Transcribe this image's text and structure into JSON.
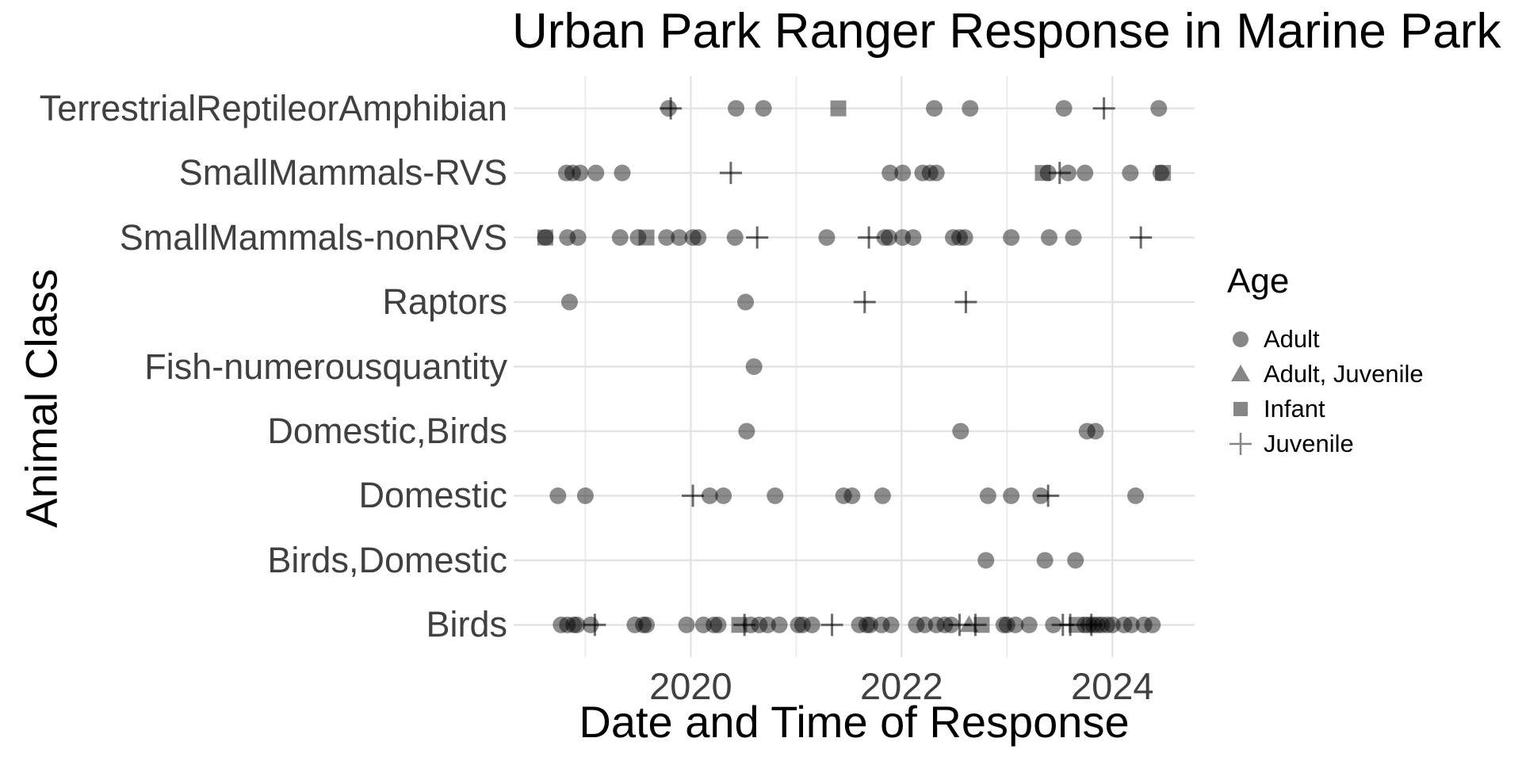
{
  "title": "Urban Park Ranger Response in Marine Park",
  "legend": {
    "title": "Age",
    "entries": [
      {
        "label": "Adult",
        "shape": "circle"
      },
      {
        "label": "Adult, Juvenile",
        "shape": "triangle"
      },
      {
        "label": "Infant",
        "shape": "square"
      },
      {
        "label": "Juvenile",
        "shape": "plus"
      }
    ]
  },
  "chart_data": {
    "type": "scatter",
    "title": "Urban Park Ranger Response in Marine Park",
    "xlabel": "Date and Time of Response",
    "ylabel": "Animal Class",
    "legend_title": "Age",
    "legend_position": "right",
    "grid": true,
    "x_range": [
      2018.32,
      2024.78
    ],
    "x_tick_labels": [
      "2020",
      "2022",
      "2024"
    ],
    "x_ticks": [
      2020,
      2022,
      2024
    ],
    "x_major_gridlines": [
      2020,
      2022,
      2024
    ],
    "x_minor_gridlines": [
      2019,
      2021,
      2023
    ],
    "categories": [
      "TerrestrialReptileorAmphibian",
      "SmallMammals-RVS",
      "SmallMammals-nonRVS",
      "Raptors",
      "Fish-numerousquantity",
      "Domestic,Birds",
      "Domestic",
      "Birds,Domestic",
      "Birds"
    ],
    "series": [
      {
        "name": "Adult",
        "shape": "circle",
        "points": [
          [
            "TerrestrialReptileorAmphibian",
            2019.79
          ],
          [
            "TerrestrialReptileorAmphibian",
            2020.43
          ],
          [
            "TerrestrialReptileorAmphibian",
            2020.69
          ],
          [
            "TerrestrialReptileorAmphibian",
            2022.31
          ],
          [
            "TerrestrialReptileorAmphibian",
            2022.65
          ],
          [
            "TerrestrialReptileorAmphibian",
            2023.54
          ],
          [
            "TerrestrialReptileorAmphibian",
            2024.44
          ],
          [
            "SmallMammals-RVS",
            2018.82
          ],
          [
            "SmallMammals-RVS",
            2018.88
          ],
          [
            "SmallMammals-RVS",
            2018.95
          ],
          [
            "SmallMammals-RVS",
            2019.1
          ],
          [
            "SmallMammals-RVS",
            2019.35
          ],
          [
            "SmallMammals-RVS",
            2021.89
          ],
          [
            "SmallMammals-RVS",
            2022.01
          ],
          [
            "SmallMammals-RVS",
            2022.2
          ],
          [
            "SmallMammals-RVS",
            2022.27
          ],
          [
            "SmallMammals-RVS",
            2022.33
          ],
          [
            "SmallMammals-RVS",
            2023.39
          ],
          [
            "SmallMammals-RVS",
            2023.58
          ],
          [
            "SmallMammals-RVS",
            2023.74
          ],
          [
            "SmallMammals-RVS",
            2024.17
          ],
          [
            "SmallMammals-RVS",
            2024.46
          ],
          [
            "SmallMammals-nonRVS",
            2018.62
          ],
          [
            "SmallMammals-nonRVS",
            2018.83
          ],
          [
            "SmallMammals-nonRVS",
            2018.93
          ],
          [
            "SmallMammals-nonRVS",
            2019.33
          ],
          [
            "SmallMammals-nonRVS",
            2019.5
          ],
          [
            "SmallMammals-nonRVS",
            2019.77
          ],
          [
            "SmallMammals-nonRVS",
            2019.89
          ],
          [
            "SmallMammals-nonRVS",
            2020.02
          ],
          [
            "SmallMammals-nonRVS",
            2020.07
          ],
          [
            "SmallMammals-nonRVS",
            2020.42
          ],
          [
            "SmallMammals-nonRVS",
            2021.29
          ],
          [
            "SmallMammals-nonRVS",
            2021.84
          ],
          [
            "SmallMammals-nonRVS",
            2021.88
          ],
          [
            "SmallMammals-nonRVS",
            2022.01
          ],
          [
            "SmallMammals-nonRVS",
            2022.11
          ],
          [
            "SmallMammals-nonRVS",
            2022.49
          ],
          [
            "SmallMammals-nonRVS",
            2022.55
          ],
          [
            "SmallMammals-nonRVS",
            2022.6
          ],
          [
            "SmallMammals-nonRVS",
            2023.04
          ],
          [
            "SmallMammals-nonRVS",
            2023.4
          ],
          [
            "SmallMammals-nonRVS",
            2023.63
          ],
          [
            "Raptors",
            2018.85
          ],
          [
            "Raptors",
            2020.52
          ],
          [
            "Fish-numerousquantity",
            2020.6
          ],
          [
            "Domestic,Birds",
            2020.53
          ],
          [
            "Domestic,Birds",
            2022.56
          ],
          [
            "Domestic,Birds",
            2023.76
          ],
          [
            "Domestic,Birds",
            2023.84
          ],
          [
            "Domestic",
            2018.74
          ],
          [
            "Domestic",
            2019.0
          ],
          [
            "Domestic",
            2020.18
          ],
          [
            "Domestic",
            2020.31
          ],
          [
            "Domestic",
            2020.8
          ],
          [
            "Domestic",
            2021.45
          ],
          [
            "Domestic",
            2021.53
          ],
          [
            "Domestic",
            2021.82
          ],
          [
            "Domestic",
            2022.82
          ],
          [
            "Domestic",
            2023.04
          ],
          [
            "Domestic",
            2023.32
          ],
          [
            "Domestic",
            2024.22
          ],
          [
            "Birds,Domestic",
            2022.8
          ],
          [
            "Birds,Domestic",
            2023.36
          ],
          [
            "Birds,Domestic",
            2023.65
          ],
          [
            "Birds",
            2018.77
          ],
          [
            "Birds",
            2018.83
          ],
          [
            "Birds",
            2018.89
          ],
          [
            "Birds",
            2018.92
          ],
          [
            "Birds",
            2019.05
          ],
          [
            "Birds",
            2019.47
          ],
          [
            "Birds",
            2019.55
          ],
          [
            "Birds",
            2019.58
          ],
          [
            "Birds",
            2019.96
          ],
          [
            "Birds",
            2020.12
          ],
          [
            "Birds",
            2020.22
          ],
          [
            "Birds",
            2020.26
          ],
          [
            "Birds",
            2020.57
          ],
          [
            "Birds",
            2020.65
          ],
          [
            "Birds",
            2020.73
          ],
          [
            "Birds",
            2020.84
          ],
          [
            "Birds",
            2021.02
          ],
          [
            "Birds",
            2021.06
          ],
          [
            "Birds",
            2021.15
          ],
          [
            "Birds",
            2021.6
          ],
          [
            "Birds",
            2021.67
          ],
          [
            "Birds",
            2021.7
          ],
          [
            "Birds",
            2021.81
          ],
          [
            "Birds",
            2021.9
          ],
          [
            "Birds",
            2022.14
          ],
          [
            "Birds",
            2022.22
          ],
          [
            "Birds",
            2022.33
          ],
          [
            "Birds",
            2022.41
          ],
          [
            "Birds",
            2022.47
          ],
          [
            "Birds",
            2022.97
          ],
          [
            "Birds",
            2023.0
          ],
          [
            "Birds",
            2023.08
          ],
          [
            "Birds",
            2023.21
          ],
          [
            "Birds",
            2023.44
          ],
          [
            "Birds",
            2023.74
          ],
          [
            "Birds",
            2023.78
          ],
          [
            "Birds",
            2023.82
          ],
          [
            "Birds",
            2023.86
          ],
          [
            "Birds",
            2023.9
          ],
          [
            "Birds",
            2023.95
          ],
          [
            "Birds",
            2024.0
          ],
          [
            "Birds",
            2024.11
          ],
          [
            "Birds",
            2024.18
          ],
          [
            "Birds",
            2024.3
          ],
          [
            "Birds",
            2024.38
          ]
        ]
      },
      {
        "name": "Adult, Juvenile",
        "shape": "triangle",
        "points": [
          [
            "Birds",
            2022.64
          ]
        ]
      },
      {
        "name": "Infant",
        "shape": "square",
        "points": [
          [
            "TerrestrialReptileorAmphibian",
            2021.4
          ],
          [
            "SmallMammals-RVS",
            2023.34
          ],
          [
            "SmallMammals-RVS",
            2024.48
          ],
          [
            "SmallMammals-nonRVS",
            2018.62
          ],
          [
            "SmallMammals-nonRVS",
            2019.58
          ],
          [
            "Birds",
            2020.46
          ],
          [
            "Birds",
            2022.76
          ],
          [
            "Birds",
            2023.66
          ]
        ]
      },
      {
        "name": "Juvenile",
        "shape": "plus",
        "points": [
          [
            "TerrestrialReptileorAmphibian",
            2019.81
          ],
          [
            "TerrestrialReptileorAmphibian",
            2023.92
          ],
          [
            "SmallMammals-RVS",
            2020.38
          ],
          [
            "SmallMammals-RVS",
            2023.5
          ],
          [
            "SmallMammals-nonRVS",
            2020.63
          ],
          [
            "SmallMammals-nonRVS",
            2021.69
          ],
          [
            "SmallMammals-nonRVS",
            2024.27
          ],
          [
            "Raptors",
            2021.65
          ],
          [
            "Raptors",
            2022.61
          ],
          [
            "Domestic",
            2020.02
          ],
          [
            "Domestic",
            2023.39
          ],
          [
            "Birds",
            2019.09
          ],
          [
            "Birds",
            2020.51
          ],
          [
            "Birds",
            2021.34
          ],
          [
            "Birds",
            2022.55
          ],
          [
            "Birds",
            2022.7
          ],
          [
            "Birds",
            2023.53
          ],
          [
            "Birds",
            2023.6
          ],
          [
            "Birds",
            2023.8
          ]
        ]
      }
    ]
  }
}
